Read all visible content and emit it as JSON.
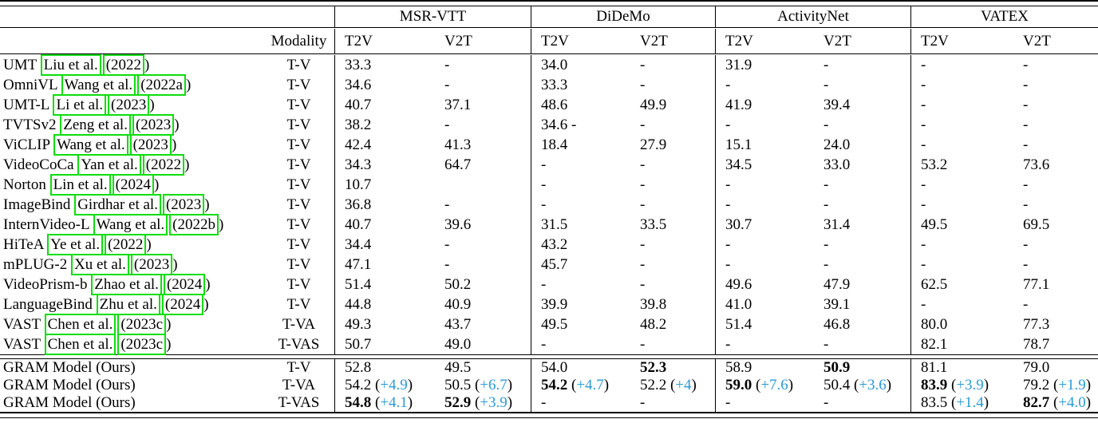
{
  "table": {
    "datasets": [
      "MSR-VTT",
      "DiDeMo",
      "ActivityNet",
      "VATEX"
    ],
    "headers": {
      "modality": "Modality",
      "t2v": "T2V",
      "v2t": "V2T"
    },
    "rows": [
      {
        "method": "UMT",
        "cite_author": "Liu et al.",
        "cite_year": "(2022",
        "cite_close": ")",
        "modality": "T-V",
        "cells": [
          "33.3",
          "-",
          "34.0",
          "-",
          "31.9",
          "-",
          "-",
          "-"
        ]
      },
      {
        "method": "OmniVL",
        "cite_author": "Wang et al.",
        "cite_year": "(2022a",
        "cite_close": ")",
        "modality": "T-V",
        "cells": [
          "34.6",
          "-",
          "33.3",
          "-",
          "-",
          "-",
          "-",
          "-"
        ]
      },
      {
        "method": "UMT-L",
        "cite_author": "Li et al.",
        "cite_year": "(2023",
        "cite_close": ")",
        "modality": "T-V",
        "cells": [
          "40.7",
          "37.1",
          "48.6",
          "49.9",
          "41.9",
          "39.4",
          "-",
          "-"
        ]
      },
      {
        "method": "TVTSv2",
        "cite_author": "Zeng et al.",
        "cite_year": "(2023",
        "cite_close": ")",
        "modality": "T-V",
        "cells": [
          "38.2",
          "-",
          "34.6 -",
          "-",
          "-",
          "-",
          "-",
          "-"
        ]
      },
      {
        "method": "ViCLIP",
        "cite_author": "Wang et al.",
        "cite_year": "(2023",
        "cite_close": ")",
        "modality": "T-V",
        "cells": [
          "42.4",
          "41.3",
          "18.4",
          "27.9",
          "15.1",
          "24.0",
          "-",
          "-"
        ]
      },
      {
        "method": "VideoCoCa",
        "cite_author": "Yan et al.",
        "cite_year": "(2022",
        "cite_close": ")",
        "modality": "T-V",
        "cells": [
          "34.3",
          "64.7",
          "-",
          "-",
          "34.5",
          "33.0",
          "53.2",
          "73.6"
        ]
      },
      {
        "method": "Norton",
        "cite_author": "Lin et al.",
        "cite_year": "(2024",
        "cite_close": ")",
        "modality": "T-V",
        "cells": [
          "10.7",
          "",
          "-",
          "-",
          "-",
          "-",
          "-",
          "-"
        ]
      },
      {
        "method": "ImageBind",
        "cite_author": "Girdhar et al.",
        "cite_year": "(2023",
        "cite_close": ")",
        "modality": "T-V",
        "cells": [
          "36.8",
          "-",
          "-",
          "-",
          "-",
          "-",
          "-",
          "-"
        ]
      },
      {
        "method": "InternVideo-L",
        "cite_author": "Wang et al.",
        "cite_year": "(2022b",
        "cite_close": ")",
        "modality": "T-V",
        "cells": [
          "40.7",
          "39.6",
          "31.5",
          "33.5",
          "30.7",
          "31.4",
          "49.5",
          "69.5"
        ]
      },
      {
        "method": "HiTeA",
        "cite_author": "Ye et al.",
        "cite_year": "(2022",
        "cite_close": ")",
        "modality": "T-V",
        "cells": [
          "34.4",
          "-",
          "43.2",
          "-",
          "-",
          "-",
          "-",
          "-"
        ]
      },
      {
        "method": "mPLUG-2",
        "cite_author": "Xu et al.",
        "cite_year": "(2023",
        "cite_close": ")",
        "modality": "T-V",
        "cells": [
          "47.1",
          "-",
          "45.7",
          "-",
          "-",
          "-",
          "-",
          "-"
        ]
      },
      {
        "method": "VideoPrism-b",
        "cite_author": "Zhao et al.",
        "cite_year": "(2024",
        "cite_close": ")",
        "modality": "T-V",
        "cells": [
          "51.4",
          "50.2",
          "-",
          "-",
          "49.6",
          "47.9",
          "62.5",
          "77.1"
        ]
      },
      {
        "method": "LanguageBind",
        "cite_author": "Zhu et al.",
        "cite_year": "(2024",
        "cite_close": ")",
        "modality": "T-V",
        "cells": [
          "44.8",
          "40.9",
          "39.9",
          "39.8",
          "41.0",
          "39.1",
          "-",
          "-"
        ]
      },
      {
        "method": "VAST",
        "cite_author": "Chen et al.",
        "cite_year": "(2023c",
        "cite_close": ")",
        "modality": "T-VA",
        "cells": [
          "49.3",
          "43.7",
          "49.5",
          "48.2",
          "51.4",
          "46.8",
          "80.0",
          "77.3"
        ]
      },
      {
        "method": "VAST",
        "cite_author": "Chen et al.",
        "cite_year": "(2023c",
        "cite_close": ")",
        "modality": "T-VAS",
        "cells": [
          "50.7",
          "49.0",
          "-",
          "-",
          "-",
          "-",
          "82.1",
          "78.7"
        ]
      }
    ],
    "gram_rows": [
      {
        "method": "GRAM Model (Ours)",
        "modality": "T-V",
        "cells": [
          {
            "v": "52.8"
          },
          {
            "v": "49.5"
          },
          {
            "v": "54.0"
          },
          {
            "v": "52.3",
            "b": true
          },
          {
            "v": "58.9"
          },
          {
            "v": "50.9",
            "b": true
          },
          {
            "v": "81.1"
          },
          {
            "v": "79.0"
          }
        ]
      },
      {
        "method": "GRAM Model (Ours)",
        "modality": "T-VA",
        "cells": [
          {
            "v": "54.2",
            "d": "+4.9"
          },
          {
            "v": "50.5",
            "d": "+6.7"
          },
          {
            "v": "54.2",
            "b": true,
            "d": "+4.7"
          },
          {
            "v": "52.2",
            "d": "+4"
          },
          {
            "v": "59.0",
            "b": true,
            "d": "+7.6"
          },
          {
            "v": "50.4",
            "d": "+3.6"
          },
          {
            "v": "83.9",
            "b": true,
            "d": "+3.9"
          },
          {
            "v": "79.2",
            "d": "+1.9"
          }
        ]
      },
      {
        "method": "GRAM Model (Ours)",
        "modality": "T-VAS",
        "cells": [
          {
            "v": "54.8",
            "b": true,
            "d": "+4.1"
          },
          {
            "v": "52.9",
            "b": true,
            "d": "+3.9"
          },
          {
            "v": "-"
          },
          {
            "v": "-"
          },
          {
            "v": "-"
          },
          {
            "v": "-"
          },
          {
            "v": "83.5",
            "d": "+1.4"
          },
          {
            "v": "82.7",
            "b": true,
            "d": "+4.0"
          }
        ]
      }
    ]
  },
  "colors": {
    "citation_box_green": "#0ddd0d",
    "delta_text_blue": "#2b9bd4",
    "rule_black": "#000000",
    "background": "#ffffff"
  }
}
